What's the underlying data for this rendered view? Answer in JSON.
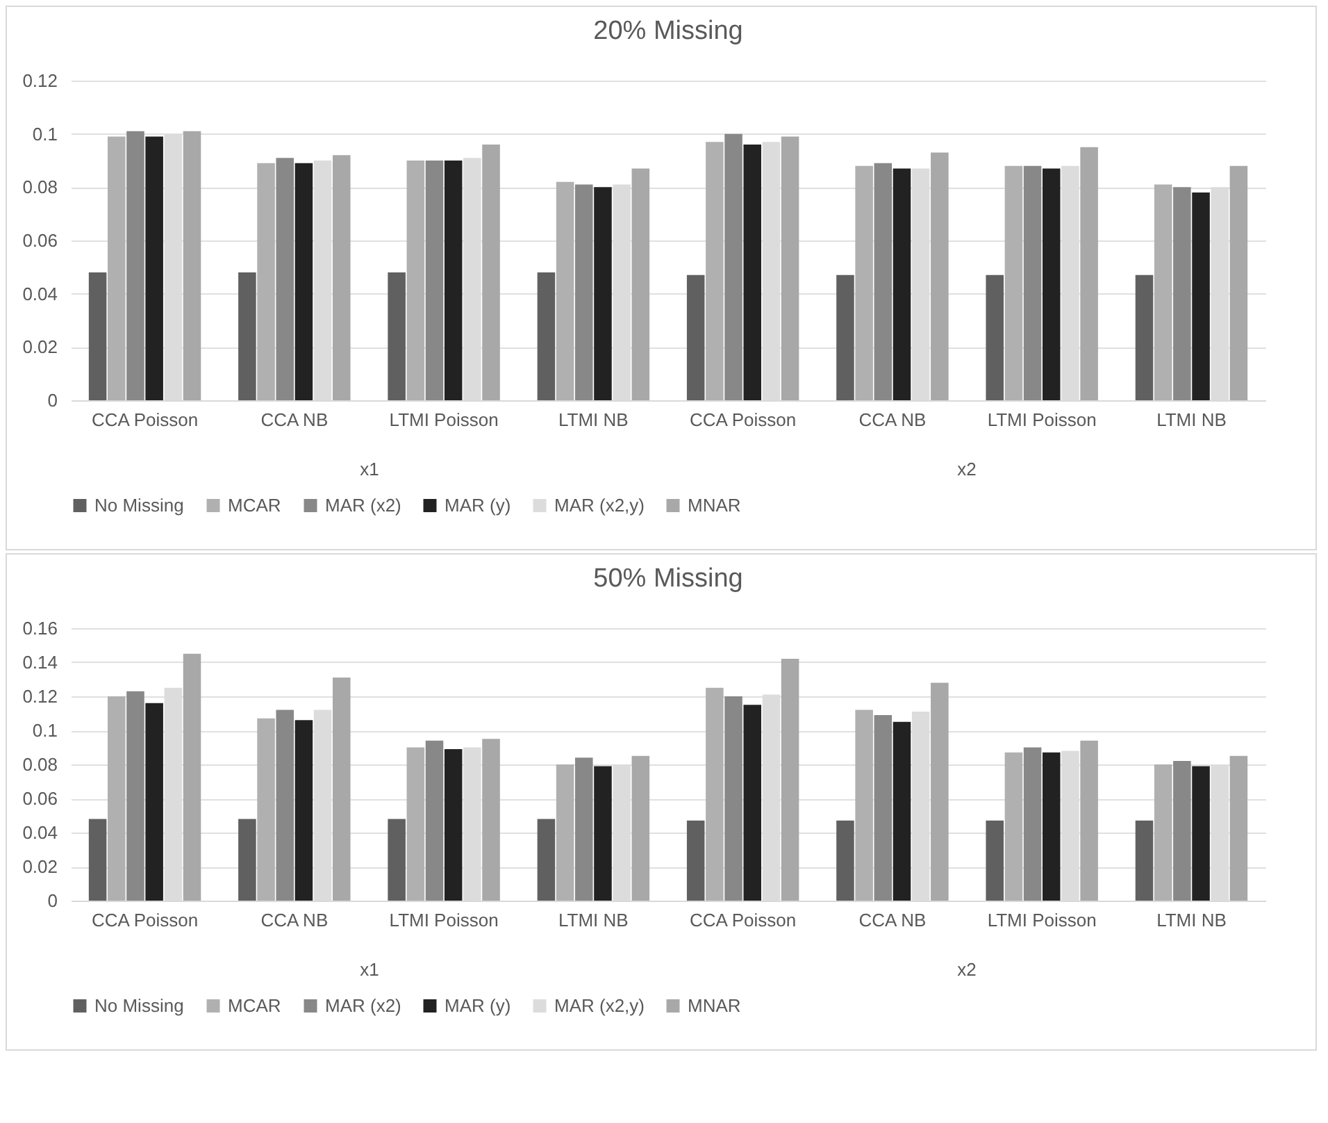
{
  "chart_data": [
    {
      "type": "bar",
      "title": "20% Missing",
      "categories": [
        "CCA Poisson",
        "CCA NB",
        "LTMI Poisson",
        "LTMI NB",
        "CCA Poisson",
        "CCA NB",
        "LTMI Poisson",
        "LTMI NB"
      ],
      "series": [
        {
          "name": "No Missing",
          "color": "#606060",
          "values": [
            0.048,
            0.048,
            0.048,
            0.048,
            0.047,
            0.047,
            0.047,
            0.047
          ]
        },
        {
          "name": "MCAR",
          "color": "#b0b0b0",
          "values": [
            0.099,
            0.089,
            0.09,
            0.082,
            0.097,
            0.088,
            0.088,
            0.081
          ]
        },
        {
          "name": "MAR (x2)",
          "color": "#888888",
          "values": [
            0.101,
            0.091,
            0.09,
            0.081,
            0.1,
            0.089,
            0.088,
            0.08
          ]
        },
        {
          "name": "MAR (y)",
          "color": "#222222",
          "values": [
            0.099,
            0.089,
            0.09,
            0.08,
            0.096,
            0.087,
            0.087,
            0.078
          ]
        },
        {
          "name": "MAR (x2,y)",
          "color": "#dcdcdc",
          "values": [
            0.1,
            0.09,
            0.091,
            0.081,
            0.097,
            0.087,
            0.088,
            0.08
          ]
        },
        {
          "name": "MNAR",
          "color": "#a8a8a8",
          "values": [
            0.101,
            0.092,
            0.096,
            0.087,
            0.099,
            0.093,
            0.095,
            0.088
          ]
        }
      ],
      "ylim": [
        0,
        0.12
      ],
      "yticks": [
        0,
        0.02,
        0.04,
        0.06,
        0.08,
        0.1,
        0.12
      ],
      "grid": "y",
      "legend": "bottom",
      "annotations": [
        "x1",
        "x2"
      ]
    },
    {
      "type": "bar",
      "title": "50% Missing",
      "categories": [
        "CCA Poisson",
        "CCA NB",
        "LTMI Poisson",
        "LTMI NB",
        "CCA Poisson",
        "CCA NB",
        "LTMI Poisson",
        "LTMI NB"
      ],
      "series": [
        {
          "name": "No Missing",
          "color": "#606060",
          "values": [
            0.048,
            0.048,
            0.048,
            0.048,
            0.047,
            0.047,
            0.047,
            0.047
          ]
        },
        {
          "name": "MCAR",
          "color": "#b0b0b0",
          "values": [
            0.12,
            0.107,
            0.09,
            0.08,
            0.125,
            0.112,
            0.087,
            0.08
          ]
        },
        {
          "name": "MAR (x2)",
          "color": "#888888",
          "values": [
            0.123,
            0.112,
            0.094,
            0.084,
            0.12,
            0.109,
            0.09,
            0.082
          ]
        },
        {
          "name": "MAR (y)",
          "color": "#222222",
          "values": [
            0.116,
            0.106,
            0.089,
            0.079,
            0.115,
            0.105,
            0.087,
            0.079
          ]
        },
        {
          "name": "MAR (x2,y)",
          "color": "#dcdcdc",
          "values": [
            0.125,
            0.112,
            0.09,
            0.08,
            0.121,
            0.111,
            0.088,
            0.08
          ]
        },
        {
          "name": "MNAR",
          "color": "#a8a8a8",
          "values": [
            0.145,
            0.131,
            0.095,
            0.085,
            0.142,
            0.128,
            0.094,
            0.085
          ]
        }
      ],
      "ylim": [
        0,
        0.16
      ],
      "yticks": [
        0,
        0.02,
        0.04,
        0.06,
        0.08,
        0.1,
        0.12,
        0.14,
        0.16
      ],
      "grid": "y",
      "legend": "bottom",
      "annotations": [
        "x1",
        "x2"
      ]
    }
  ]
}
